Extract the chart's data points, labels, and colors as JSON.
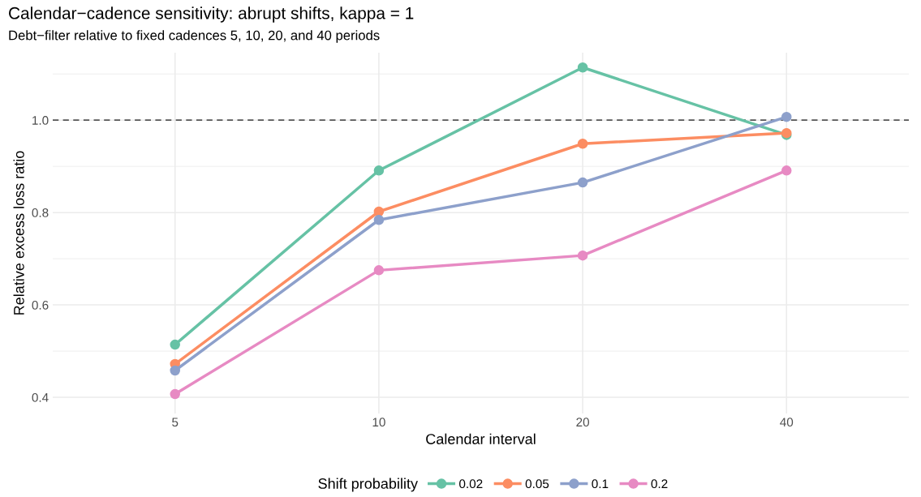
{
  "chart_data": {
    "type": "line",
    "title": "Calendar−cadence sensitivity: abrupt shifts, kappa = 1",
    "subtitle": "Debt−filter relative to fixed cadences 5, 10, 20, and 40 periods",
    "xlabel": "Calendar interval",
    "ylabel": "Relative excess loss ratio",
    "legend_title": "Shift probability",
    "categories": [
      "5",
      "10",
      "20",
      "40"
    ],
    "series": [
      {
        "name": "0.02",
        "color": "#66c2a5",
        "values": [
          0.514,
          0.891,
          1.114,
          0.968
        ]
      },
      {
        "name": "0.05",
        "color": "#fc8d62",
        "values": [
          0.472,
          0.802,
          0.949,
          0.972
        ]
      },
      {
        "name": "0.1",
        "color": "#8da0cb",
        "values": [
          0.458,
          0.784,
          0.865,
          1.007
        ]
      },
      {
        "name": "0.2",
        "color": "#e78ac3",
        "values": [
          0.407,
          0.675,
          0.707,
          0.891
        ]
      }
    ],
    "ylim": [
      0.365,
      1.146
    ],
    "yticks": [
      {
        "value": 0.4,
        "label": "0.4"
      },
      {
        "value": 0.5,
        "label": null
      },
      {
        "value": 0.6,
        "label": "0.6"
      },
      {
        "value": 0.7,
        "label": null
      },
      {
        "value": 0.8,
        "label": "0.8"
      },
      {
        "value": 0.9,
        "label": null
      },
      {
        "value": 1,
        "label": "1.0"
      },
      {
        "value": 1.1,
        "label": null
      }
    ],
    "ref_lines": [
      {
        "axis": "y",
        "value": 1,
        "color": "#555555",
        "line_style": "dashed"
      }
    ],
    "grid": true,
    "legend": "bottom",
    "marker": "circle",
    "line_style": "solid"
  }
}
